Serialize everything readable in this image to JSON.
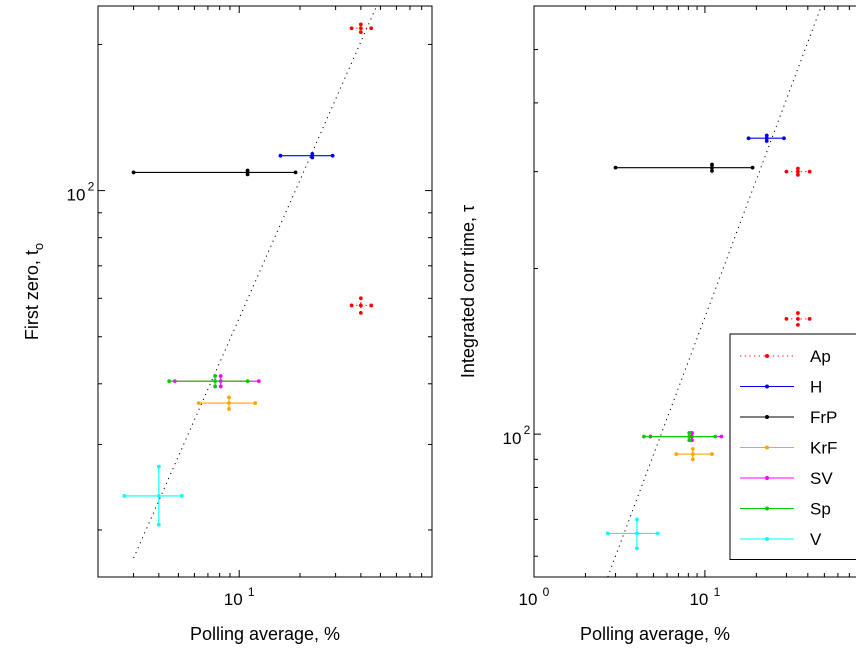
{
  "figure": {
    "panels": [
      "left",
      "right"
    ]
  },
  "chart_data": [
    {
      "id": "left",
      "type": "scatter",
      "xscale": "log",
      "yscale": "log",
      "xlim": [
        2,
        90
      ],
      "ylim": [
        16,
        240
      ],
      "grid": false,
      "xlabel": "Polling average, %",
      "ylabel_main": "First zero, t",
      "ylabel_sub": "o",
      "xticks": [
        {
          "value": 10,
          "base": "10",
          "exp": "1"
        }
      ],
      "yticks": [
        {
          "value": 100,
          "base": "10",
          "exp": "2"
        }
      ],
      "fit_line": {
        "x": [
          3.0,
          50
        ],
        "y": [
          17.5,
          250
        ]
      },
      "series": [
        {
          "name": "Ap",
          "color": "#ff0000",
          "linestyle": "dotted",
          "points": [
            {
              "x": 40,
              "y": 216,
              "xerr": [
                36,
                45
              ],
              "yerr": [
                212,
                220
              ]
            },
            {
              "x": 40,
              "y": 58,
              "xerr": [
                36,
                45
              ],
              "yerr": [
                56,
                60
              ]
            }
          ]
        },
        {
          "name": "H",
          "color": "#0000ff",
          "linestyle": "solid",
          "points": [
            {
              "x": 23,
              "y": 118,
              "xerr": [
                16,
                29
              ],
              "yerr": [
                117,
                119
              ]
            }
          ]
        },
        {
          "name": "FrP",
          "color": "#000000",
          "linestyle": "solid",
          "points": [
            {
              "x": 11,
              "y": 109,
              "xerr": [
                3.0,
                19
              ],
              "yerr": [
                108,
                110
              ]
            }
          ]
        },
        {
          "name": "KrF",
          "color": "#ffa500",
          "linestyle": "solid",
          "points": [
            {
              "x": 8.9,
              "y": 36.5,
              "xerr": [
                6.3,
                12
              ],
              "yerr": [
                35.5,
                37.5
              ]
            }
          ]
        },
        {
          "name": "SV",
          "color": "#ff00ff",
          "linestyle": "solid",
          "points": [
            {
              "x": 8.1,
              "y": 40.5,
              "xerr": [
                4.8,
                12.5
              ],
              "yerr": [
                39.5,
                41.5
              ]
            }
          ]
        },
        {
          "name": "Sp",
          "color": "#00cc00",
          "linestyle": "solid",
          "points": [
            {
              "x": 7.6,
              "y": 40.5,
              "xerr": [
                4.5,
                11
              ],
              "yerr": [
                39.5,
                41.5
              ]
            }
          ]
        },
        {
          "name": "V",
          "color": "#00ffff",
          "linestyle": "solid",
          "points": [
            {
              "x": 4.0,
              "y": 23.5,
              "xerr": [
                2.7,
                5.2
              ],
              "yerr": [
                20.5,
                27
              ]
            }
          ]
        }
      ]
    },
    {
      "id": "right",
      "type": "scatter",
      "xscale": "log",
      "yscale": "log",
      "xlim": [
        1,
        90
      ],
      "ylim": [
        55,
        600
      ],
      "grid": false,
      "xlabel": "Polling average, %",
      "ylabel_main": "Integrated corr time, τ",
      "ylabel_sub": "",
      "xticks": [
        {
          "value": 1,
          "base": "10",
          "exp": "0"
        },
        {
          "value": 10,
          "base": "10",
          "exp": "1"
        }
      ],
      "yticks": [
        {
          "value": 100,
          "base": "10",
          "exp": "2"
        }
      ],
      "fit_line": {
        "x": [
          2.7,
          48
        ],
        "y": [
          55,
          600
        ]
      },
      "legend": {
        "location": "bottom-right"
      },
      "series": [
        {
          "name": "Ap",
          "color": "#ff0000",
          "linestyle": "dotted",
          "points": [
            {
              "x": 35,
              "y": 300,
              "xerr": [
                30,
                41
              ],
              "yerr": [
                296,
                304
              ]
            },
            {
              "x": 35,
              "y": 162,
              "xerr": [
                30,
                41
              ],
              "yerr": [
                158,
                166
              ]
            }
          ]
        },
        {
          "name": "H",
          "color": "#0000ff",
          "linestyle": "solid",
          "points": [
            {
              "x": 23,
              "y": 345,
              "xerr": [
                18,
                29
              ],
              "yerr": [
                341,
                349
              ]
            }
          ]
        },
        {
          "name": "FrP",
          "color": "#000000",
          "linestyle": "solid",
          "points": [
            {
              "x": 11,
              "y": 305,
              "xerr": [
                3.0,
                19
              ],
              "yerr": [
                301,
                309
              ]
            }
          ]
        },
        {
          "name": "KrF",
          "color": "#ffa500",
          "linestyle": "solid",
          "points": [
            {
              "x": 8.5,
              "y": 92,
              "xerr": [
                6.8,
                11
              ],
              "yerr": [
                90,
                94
              ]
            }
          ]
        },
        {
          "name": "SV",
          "color": "#ff00ff",
          "linestyle": "solid",
          "points": [
            {
              "x": 8.4,
              "y": 99,
              "xerr": [
                4.8,
                12.5
              ],
              "yerr": [
                97.5,
                100.5
              ]
            }
          ]
        },
        {
          "name": "Sp",
          "color": "#00cc00",
          "linestyle": "solid",
          "points": [
            {
              "x": 8.1,
              "y": 99,
              "xerr": [
                4.4,
                11.5
              ],
              "yerr": [
                97.5,
                100.5
              ]
            }
          ]
        },
        {
          "name": "V",
          "color": "#00ffff",
          "linestyle": "solid",
          "points": [
            {
              "x": 4.0,
              "y": 66,
              "xerr": [
                2.7,
                5.3
              ],
              "yerr": [
                62,
                70
              ]
            }
          ]
        }
      ]
    }
  ]
}
